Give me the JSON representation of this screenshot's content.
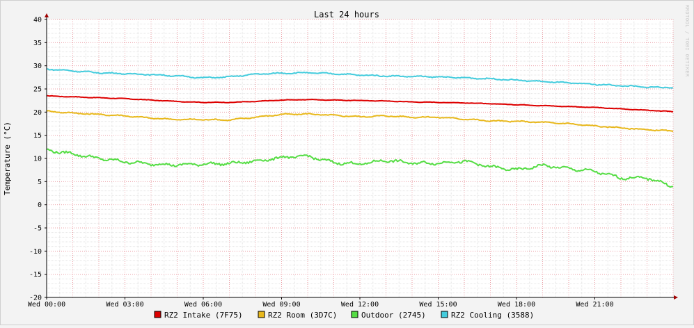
{
  "chart_data": {
    "type": "line",
    "title": "Last 24 hours",
    "ylabel": "Temperature (°C)",
    "xlabel": "",
    "watermark": "RRDTOOL / TOBI OETIKER",
    "ylim": [
      -20,
      40
    ],
    "yticks": [
      -20,
      -15,
      -10,
      -5,
      0,
      5,
      10,
      15,
      20,
      25,
      30,
      35,
      40
    ],
    "xlim_hours": [
      0,
      24
    ],
    "xticks": [
      {
        "label": "Wed 00:00",
        "hour": 0
      },
      {
        "label": "Wed 03:00",
        "hour": 3
      },
      {
        "label": "Wed 06:00",
        "hour": 6
      },
      {
        "label": "Wed 09:00",
        "hour": 9
      },
      {
        "label": "Wed 12:00",
        "hour": 12
      },
      {
        "label": "Wed 15:00",
        "hour": 15
      },
      {
        "label": "Wed 18:00",
        "hour": 18
      },
      {
        "label": "Wed 21:00",
        "hour": 21
      }
    ],
    "grid": true,
    "legend_position": "bottom",
    "series": [
      {
        "name": "RZ2 Intake (7F75)",
        "color": "#dd0000",
        "x": [
          0,
          1,
          2,
          3,
          4,
          5,
          6,
          7,
          8,
          9,
          10,
          11,
          12,
          13,
          14,
          15,
          16,
          17,
          18,
          19,
          20,
          21,
          22,
          23,
          24
        ],
        "values": [
          23.5,
          23.3,
          23.1,
          22.9,
          22.6,
          22.3,
          22.1,
          22.1,
          22.3,
          22.6,
          22.7,
          22.6,
          22.5,
          22.4,
          22.2,
          22.1,
          22.0,
          21.8,
          21.6,
          21.4,
          21.2,
          21.0,
          20.7,
          20.4,
          20.1
        ]
      },
      {
        "name": "RZ2 Room (3D7C)",
        "color": "#e8b81c",
        "x": [
          0,
          1,
          2,
          3,
          4,
          5,
          6,
          7,
          8,
          9,
          10,
          11,
          12,
          13,
          14,
          15,
          16,
          17,
          18,
          19,
          20,
          21,
          22,
          23,
          24
        ],
        "values": [
          20.2,
          19.8,
          19.5,
          19.2,
          18.7,
          18.4,
          18.4,
          18.3,
          18.9,
          19.5,
          19.6,
          19.3,
          19.0,
          19.2,
          18.9,
          18.9,
          18.5,
          18.1,
          18.0,
          17.8,
          17.5,
          17.0,
          16.6,
          16.2,
          15.9
        ]
      },
      {
        "name": "Outdoor (2745)",
        "color": "#55dd44",
        "x": [
          0,
          1,
          2,
          3,
          4,
          5,
          6,
          7,
          8,
          9,
          10,
          11,
          12,
          13,
          14,
          15,
          16,
          17,
          18,
          19,
          20,
          21,
          22,
          23,
          24
        ],
        "values": [
          11.8,
          11.0,
          10.0,
          9.3,
          8.8,
          8.6,
          8.8,
          8.9,
          9.4,
          10.2,
          10.5,
          9.1,
          8.8,
          9.6,
          9.0,
          9.0,
          9.4,
          8.2,
          7.5,
          8.5,
          7.8,
          7.2,
          5.8,
          5.8,
          4.0
        ]
      },
      {
        "name": "RZ2 Cooling (3588)",
        "color": "#44ccdd",
        "x": [
          0,
          1,
          2,
          3,
          4,
          5,
          6,
          7,
          8,
          9,
          10,
          11,
          12,
          13,
          14,
          15,
          16,
          17,
          18,
          19,
          20,
          21,
          22,
          23,
          24
        ],
        "values": [
          29.3,
          28.9,
          28.5,
          28.3,
          28.1,
          27.8,
          27.4,
          27.6,
          28.2,
          28.4,
          28.5,
          28.3,
          28.0,
          27.8,
          27.7,
          27.6,
          27.4,
          27.2,
          26.9,
          26.6,
          26.3,
          26.0,
          25.7,
          25.4,
          25.3
        ]
      }
    ]
  }
}
